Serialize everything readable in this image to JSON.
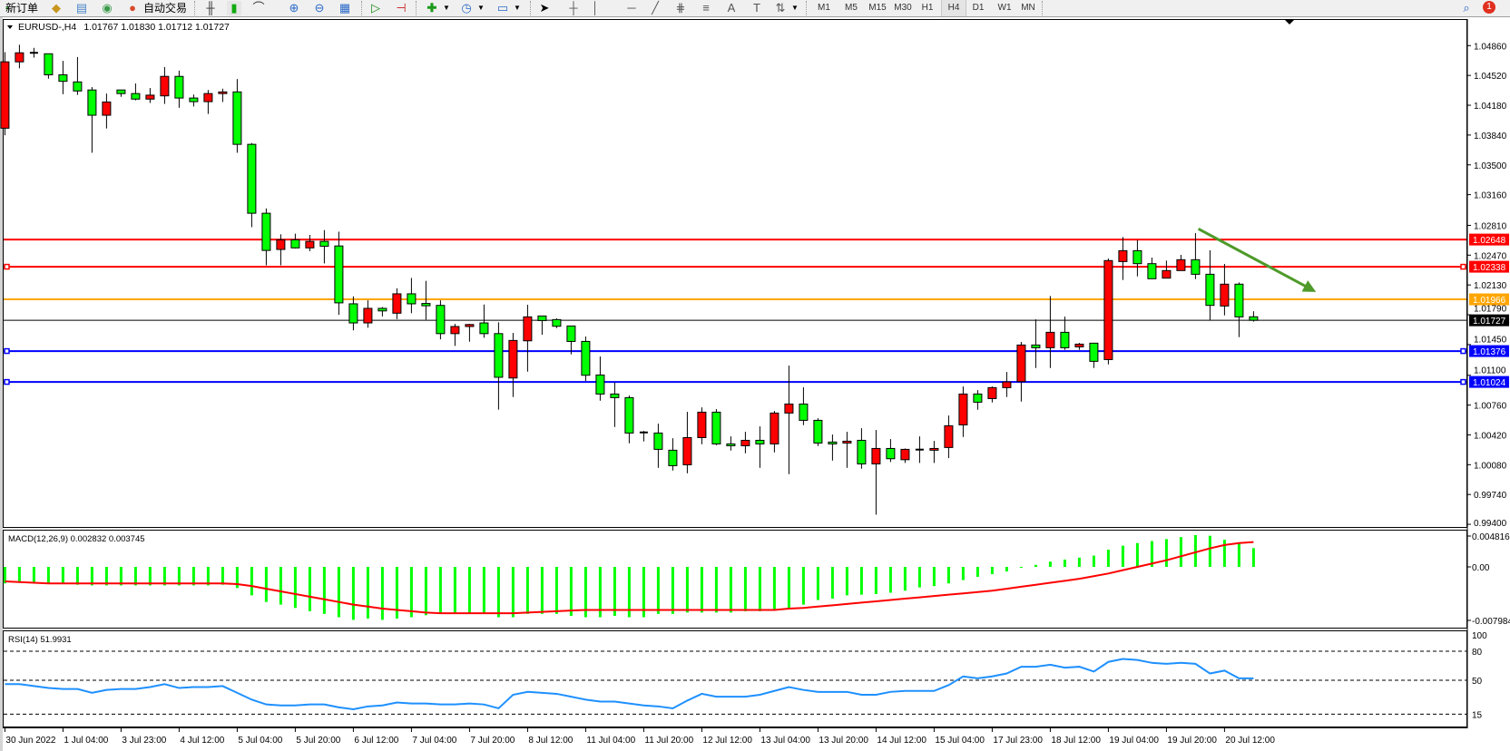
{
  "toolbar": {
    "new_order_label": "新订单",
    "auto_trading_label": "自动交易",
    "timeframes": [
      "M1",
      "M5",
      "M15",
      "M30",
      "H1",
      "H4",
      "D1",
      "W1",
      "MN"
    ],
    "active_timeframe": "H4",
    "notification_count": "1",
    "icons": [
      "new-order-icon",
      "market-watch-icon",
      "data-window-icon",
      "signal-icon",
      "auto-trading-icon",
      "bar-chart-icon",
      "candlestick-icon",
      "line-chart-icon",
      "zoom-in-icon",
      "zoom-out-icon",
      "tile-windows-icon",
      "autoscroll-icon",
      "chart-shift-icon",
      "indicators-icon",
      "periods-icon",
      "templates-icon",
      "cursor-icon",
      "crosshair-icon",
      "vertical-line-icon",
      "horizontal-line-icon",
      "trendline-icon",
      "fibo-expansion-icon",
      "fibo-retracement-icon",
      "text-icon",
      "text-label-icon",
      "arrows-icon",
      "search-icon",
      "notification-icon"
    ]
  },
  "chart_header": {
    "symbol": "EURUSD-,H4",
    "ohlc": "1.01767 1.01830 1.01712 1.01727"
  },
  "chart_data": [
    {
      "type": "candlestick",
      "title": "EURUSD-,H4",
      "colors": {
        "bull": "#ff0000",
        "bear": "#00ff00",
        "wick": "#000000"
      },
      "ylim": [
        0.994,
        1.0486
      ],
      "y_ticks": [
        "1.04860",
        "1.04520",
        "1.04180",
        "1.03840",
        "1.03500",
        "1.03160",
        "1.02810",
        "1.02470",
        "1.02130",
        "1.01790",
        "1.01450",
        "1.01100",
        "1.00760",
        "1.00420",
        "1.00080",
        "0.99740",
        "0.99400"
      ],
      "x_tick_labels": [
        "30 Jun 2022",
        "1 Jul 04:00",
        "3 Jul 23:00",
        "4 Jul 12:00",
        "5 Jul 04:00",
        "5 Jul 20:00",
        "6 Jul 12:00",
        "7 Jul 04:00",
        "7 Jul 20:00",
        "8 Jul 12:00",
        "11 Jul 04:00",
        "11 Jul 20:00",
        "12 Jul 12:00",
        "13 Jul 04:00",
        "13 Jul 20:00",
        "14 Jul 12:00",
        "15 Jul 04:00",
        "17 Jul 23:00",
        "18 Jul 12:00",
        "19 Jul 04:00",
        "19 Jul 20:00",
        "20 Jul 12:00"
      ],
      "ohlc": [
        [
          1.03918,
          1.04786,
          1.03837,
          1.04675
        ],
        [
          1.04675,
          1.0487,
          1.04601,
          1.04778
        ],
        [
          1.04778,
          1.04834,
          1.04723,
          1.04772
        ],
        [
          1.04767,
          1.04767,
          1.04483,
          1.04527
        ],
        [
          1.04527,
          1.04686,
          1.04306,
          1.04453
        ],
        [
          1.04446,
          1.0473,
          1.04298,
          1.04343
        ],
        [
          1.04354,
          1.04387,
          1.03638,
          1.04066
        ],
        [
          1.04066,
          1.04313,
          1.03915,
          1.04217
        ],
        [
          1.04354,
          1.04354,
          1.04276,
          1.04313
        ],
        [
          1.04313,
          1.04428,
          1.04236,
          1.0425
        ],
        [
          1.0425,
          1.04376,
          1.04206,
          1.04295
        ],
        [
          1.04287,
          1.04616,
          1.04195,
          1.04509
        ],
        [
          1.04509,
          1.04575,
          1.04151,
          1.04262
        ],
        [
          1.04262,
          1.04302,
          1.04166,
          1.04221
        ],
        [
          1.04221,
          1.04354,
          1.04081,
          1.04313
        ],
        [
          1.04313,
          1.04369,
          1.04217,
          1.04332
        ],
        [
          1.04332,
          1.04479,
          1.03638,
          1.03734
        ],
        [
          1.03734,
          1.03749,
          1.02789,
          1.02948
        ],
        [
          1.02948,
          1.03003,
          1.02354,
          1.02524
        ],
        [
          1.02535,
          1.02708,
          1.02354,
          1.02645
        ],
        [
          1.02645,
          1.02715,
          1.02546,
          1.02553
        ],
        [
          1.02553,
          1.02701,
          1.02516,
          1.02627
        ],
        [
          1.02627,
          1.02756,
          1.02376,
          1.02572
        ],
        [
          1.02575,
          1.02738,
          1.01789,
          1.01926
        ],
        [
          1.01915,
          1.02,
          1.01612,
          1.01697
        ],
        [
          1.01697,
          1.01955,
          1.01642,
          1.01863
        ],
        [
          1.01863,
          1.01878,
          1.01771,
          1.01834
        ],
        [
          1.01808,
          1.02092,
          1.01741,
          1.02029
        ],
        [
          1.02029,
          1.0221,
          1.01808,
          1.01915
        ],
        [
          1.01919,
          1.02177,
          1.01734,
          1.01893
        ],
        [
          1.01897,
          1.01955,
          1.01509,
          1.01575
        ],
        [
          1.01575,
          1.01686,
          1.01435,
          1.01656
        ],
        [
          1.01656,
          1.01686,
          1.01483,
          1.01679
        ],
        [
          1.01697,
          1.01907,
          1.01528,
          1.01575
        ],
        [
          1.01575,
          1.01704,
          1.00708,
          1.01077
        ],
        [
          1.01069,
          1.01583,
          1.00852,
          1.01497
        ],
        [
          1.01493,
          1.01904,
          1.01141,
          1.01766
        ],
        [
          1.01776,
          1.01776,
          1.01562,
          1.01724
        ],
        [
          1.01735,
          1.01749,
          1.01638,
          1.01659
        ],
        [
          1.01662,
          1.01662,
          1.01338,
          1.01486
        ],
        [
          1.01486,
          1.01542,
          1.01034,
          1.011
        ],
        [
          1.01103,
          1.01314,
          1.0081,
          1.00886
        ],
        [
          1.00886,
          1.01017,
          1.0051,
          1.00845
        ],
        [
          1.00845,
          1.00869,
          1.00324,
          1.00441
        ],
        [
          1.00448,
          1.00465,
          1.00345,
          1.00445
        ],
        [
          1.00441,
          1.00548,
          1.00044,
          1.00255
        ],
        [
          1.00245,
          1.00382,
          1.00013,
          1.00069
        ],
        [
          1.00079,
          1.00683,
          0.99982,
          1.00389
        ],
        [
          1.00389,
          1.00734,
          1.00313,
          1.00679
        ],
        [
          1.00679,
          1.00714,
          1.00303,
          1.00317
        ],
        [
          1.00317,
          1.00403,
          1.00241,
          1.00296
        ],
        [
          1.00296,
          1.00455,
          1.0021,
          1.00358
        ],
        [
          1.00358,
          1.00517,
          1.00044,
          1.00317
        ],
        [
          1.00317,
          1.00693,
          1.0022,
          1.00669
        ],
        [
          1.00669,
          1.0121,
          0.99972,
          1.00772
        ],
        [
          1.00772,
          1.00962,
          1.00531,
          1.00586
        ],
        [
          1.00586,
          1.0061,
          1.00293,
          1.00327
        ],
        [
          1.00338,
          1.00424,
          1.00127,
          1.00317
        ],
        [
          1.00327,
          1.00455,
          1.00044,
          1.00348
        ],
        [
          1.00358,
          1.00496,
          1.00034,
          1.00089
        ],
        [
          1.00089,
          1.00476,
          0.9951,
          1.00265
        ],
        [
          1.00265,
          1.00372,
          1.0011,
          1.00148
        ],
        [
          1.00137,
          1.00265,
          1.001,
          1.00255
        ],
        [
          1.00252,
          1.00403,
          1.001,
          1.00245
        ],
        [
          1.00245,
          1.00351,
          1.001,
          1.00265
        ],
        [
          1.00276,
          1.00641,
          1.00155,
          1.00524
        ],
        [
          1.00534,
          1.00972,
          1.00396,
          1.00886
        ],
        [
          1.00886,
          1.00931,
          1.00707,
          1.00793
        ],
        [
          1.00834,
          1.00972,
          1.0079,
          1.00959
        ],
        [
          1.00959,
          1.01138,
          1.00852,
          1.01024
        ],
        [
          1.01028,
          1.0148,
          1.008,
          1.01445
        ],
        [
          1.01445,
          1.01738,
          1.01183,
          1.01414
        ],
        [
          1.01414,
          1.02004,
          1.01183,
          1.0159
        ],
        [
          1.0159,
          1.01769,
          1.0139,
          1.01414
        ],
        [
          1.01424,
          1.01469,
          1.0139,
          1.01455
        ],
        [
          1.01466,
          1.01466,
          1.01183,
          1.01259
        ],
        [
          1.01279,
          1.02432,
          1.01224,
          1.02408
        ],
        [
          1.02397,
          1.02677,
          1.02187,
          1.02521
        ],
        [
          1.02521,
          1.02642,
          1.02228,
          1.02373
        ],
        [
          1.02373,
          1.02442,
          1.02201,
          1.02201
        ],
        [
          1.02208,
          1.02408,
          1.02208,
          1.02294
        ],
        [
          1.02294,
          1.02473,
          1.02294,
          1.02418
        ],
        [
          1.02418,
          1.02722,
          1.02197,
          1.02252
        ],
        [
          1.02252,
          1.02525,
          1.01724,
          1.01897
        ],
        [
          1.0189,
          1.0237,
          1.01783,
          1.02139
        ],
        [
          1.02139,
          1.02159,
          1.01535,
          1.01766
        ],
        [
          1.01767,
          1.0183,
          1.01712,
          1.01727
        ]
      ],
      "horizontal_lines": [
        {
          "price": "1.02648",
          "color": "#ff0000",
          "markers": false
        },
        {
          "price": "1.02338",
          "color": "#ff0000",
          "markers": true
        },
        {
          "price": "1.01966",
          "color": "#ffa500",
          "markers": false
        },
        {
          "price": "1.01727",
          "color": "#000000",
          "markers": false
        },
        {
          "price": "1.01376",
          "color": "#0000ff",
          "markers": true
        },
        {
          "price": "1.01024",
          "color": "#0000ff",
          "markers": true
        }
      ],
      "trend_arrow": {
        "color": "#4e9a2a",
        "from": {
          "bar": 82.2,
          "price": 1.0277
        },
        "to": {
          "bar": 90.3,
          "price": 1.0205
        }
      }
    },
    {
      "type": "bar+line",
      "title": "MACD(12,26,9) 0.002832 0.003745",
      "y_ticks": [
        "0.004816",
        "0.00",
        "-0.007984"
      ],
      "ylim": [
        -0.007984,
        0.004816
      ],
      "colors": {
        "histogram": "#00ff00",
        "signal": "#ff0000"
      },
      "histogram": [
        -0.0025,
        -0.0024,
        -0.0023,
        -0.0024,
        -0.0025,
        -0.0027,
        -0.0028,
        -0.0028,
        -0.0028,
        -0.0028,
        -0.0028,
        -0.0028,
        -0.0028,
        -0.0028,
        -0.0028,
        -0.0027,
        -0.0032,
        -0.0043,
        -0.0053,
        -0.0057,
        -0.0062,
        -0.0067,
        -0.0071,
        -0.0076,
        -0.008,
        -0.0078,
        -0.008,
        -0.0078,
        -0.0076,
        -0.0073,
        -0.0071,
        -0.007,
        -0.0071,
        -0.0071,
        -0.0076,
        -0.0076,
        -0.0071,
        -0.0071,
        -0.0071,
        -0.0074,
        -0.0076,
        -0.0076,
        -0.0074,
        -0.0076,
        -0.0076,
        -0.0071,
        -0.0071,
        -0.0069,
        -0.0069,
        -0.0069,
        -0.0069,
        -0.0067,
        -0.0067,
        -0.0066,
        -0.0063,
        -0.0057,
        -0.005,
        -0.0048,
        -0.0043,
        -0.0042,
        -0.0041,
        -0.0039,
        -0.0036,
        -0.0031,
        -0.0029,
        -0.0025,
        -0.002,
        -0.0015,
        -0.0011,
        -0.0007,
        -0.0001,
        0.0003,
        0.0008,
        0.0011,
        0.0014,
        0.0017,
        0.0026,
        0.0032,
        0.0036,
        0.0039,
        0.0042,
        0.0045,
        0.0048,
        0.0047,
        0.0041,
        0.0035,
        0.002832
      ],
      "signal": [
        -0.0022,
        -0.0023,
        -0.0024,
        -0.0025,
        -0.0025,
        -0.0025,
        -0.0025,
        -0.0025,
        -0.0025,
        -0.0025,
        -0.0025,
        -0.0025,
        -0.0025,
        -0.0025,
        -0.0025,
        -0.0025,
        -0.0026,
        -0.0029,
        -0.0033,
        -0.0037,
        -0.0041,
        -0.0045,
        -0.0049,
        -0.0053,
        -0.0057,
        -0.006,
        -0.0063,
        -0.0065,
        -0.0067,
        -0.0069,
        -0.007,
        -0.007,
        -0.007,
        -0.007,
        -0.007,
        -0.007,
        -0.0069,
        -0.0068,
        -0.0067,
        -0.0066,
        -0.0065,
        -0.0065,
        -0.0065,
        -0.0065,
        -0.0065,
        -0.0065,
        -0.0065,
        -0.0065,
        -0.0065,
        -0.0065,
        -0.0065,
        -0.0065,
        -0.0065,
        -0.0065,
        -0.0063,
        -0.0062,
        -0.006,
        -0.0058,
        -0.0056,
        -0.0054,
        -0.0052,
        -0.005,
        -0.0048,
        -0.0046,
        -0.0044,
        -0.0042,
        -0.004,
        -0.0038,
        -0.0036,
        -0.0033,
        -0.003,
        -0.0027,
        -0.0024,
        -0.0021,
        -0.0018,
        -0.0014,
        -0.001,
        -0.0005,
        0.0,
        0.0005,
        0.001,
        0.0016,
        0.0022,
        0.0028,
        0.0033,
        0.0036,
        0.003745
      ]
    },
    {
      "type": "line",
      "title": "RSI(14) 51.9931",
      "y_ticks": [
        "100",
        "80",
        "50",
        "15"
      ],
      "levels": [
        80,
        50,
        15
      ],
      "ylim": [
        0,
        100
      ],
      "color": "#1e90ff",
      "values": [
        46,
        46,
        44,
        42,
        41,
        41,
        37,
        40,
        41,
        41,
        43,
        46,
        42,
        43,
        43,
        44,
        37,
        30,
        25,
        24,
        24,
        25,
        25,
        22,
        20,
        23,
        24,
        27,
        26,
        26,
        25,
        25,
        26,
        25,
        21,
        35,
        38,
        37,
        36,
        33,
        30,
        28,
        28,
        26,
        24,
        23,
        21,
        29,
        36,
        33,
        33,
        33,
        35,
        39,
        43,
        40,
        38,
        38,
        38,
        35,
        35,
        38,
        39,
        39,
        39,
        45,
        54,
        52,
        54,
        57,
        64,
        64,
        66,
        63,
        64,
        59,
        69,
        72,
        71,
        68,
        67,
        68,
        67,
        57,
        60,
        52,
        51.9931
      ]
    }
  ]
}
